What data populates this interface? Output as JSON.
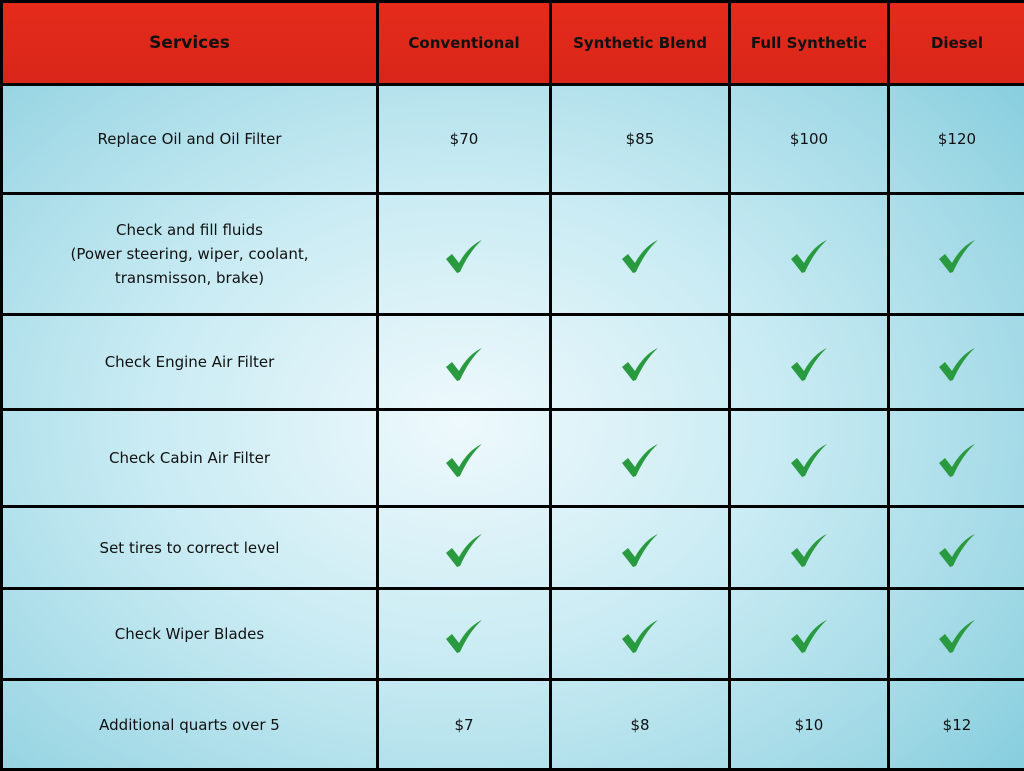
{
  "header": {
    "services": "Services",
    "columns": [
      "Conventional",
      "Synthetic Blend",
      "Full Synthetic",
      "Diesel"
    ]
  },
  "colors": {
    "header": "#e02a1a",
    "check": "#2a9a40",
    "border": "#000000"
  },
  "rows": [
    {
      "service": [
        "Replace Oil and Oil Filter"
      ],
      "values": [
        "$70",
        "$85",
        "$100",
        "$120"
      ]
    },
    {
      "service": [
        "Check and fill fluids",
        "(Power steering, wiper, coolant,",
        "transmisson, brake)"
      ],
      "values": [
        "check-icon",
        "check-icon",
        "check-icon",
        "check-icon"
      ]
    },
    {
      "service": [
        "Check Engine Air Filter"
      ],
      "values": [
        "check-icon",
        "check-icon",
        "check-icon",
        "check-icon"
      ]
    },
    {
      "service": [
        "Check Cabin Air Filter"
      ],
      "values": [
        "check-icon",
        "check-icon",
        "check-icon",
        "check-icon"
      ]
    },
    {
      "service": [
        "Set tires to correct level"
      ],
      "values": [
        "check-icon",
        "check-icon",
        "check-icon",
        "check-icon"
      ]
    },
    {
      "service": [
        "Check Wiper Blades"
      ],
      "values": [
        "check-icon",
        "check-icon",
        "check-icon",
        "check-icon"
      ]
    },
    {
      "service": [
        "Additional quarts over 5"
      ],
      "values": [
        "$7",
        "$8",
        "$10",
        "$12"
      ]
    }
  ]
}
